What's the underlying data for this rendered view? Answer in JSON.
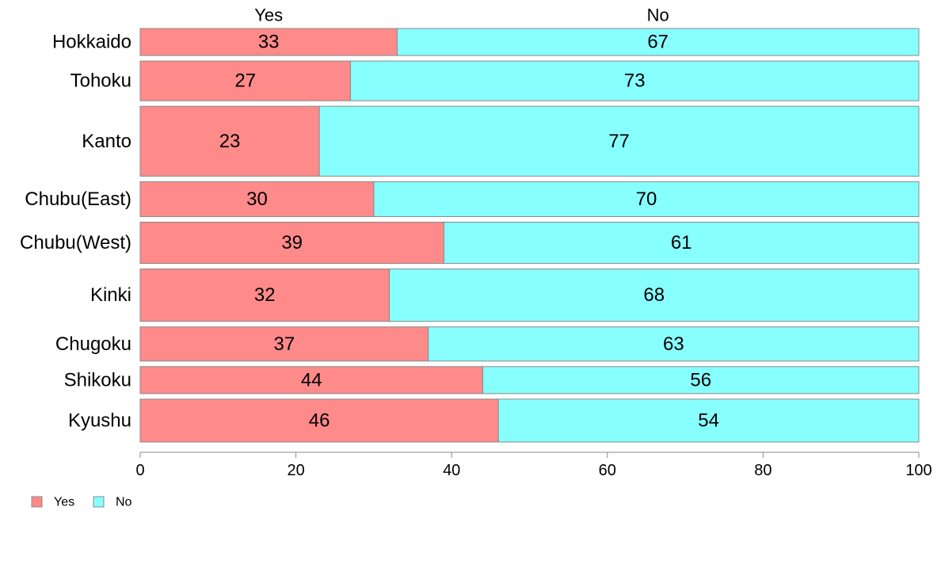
{
  "chart_data": {
    "type": "bar",
    "orientation": "horizontal",
    "stacked": true,
    "title": "",
    "xlabel": "",
    "ylabel": "",
    "xlim": [
      0,
      100
    ],
    "xticks": [
      0,
      20,
      40,
      60,
      80,
      100
    ],
    "grid": false,
    "legend_position": "bottom-left",
    "categories": [
      "Hokkaido",
      "Tohoku",
      "Kanto",
      "Chubu(East)",
      "Chubu(West)",
      "Kinki",
      "Chugoku",
      "Shikoku",
      "Kyushu"
    ],
    "category_weights": [
      34,
      50,
      88,
      44,
      52,
      66,
      43,
      34,
      54
    ],
    "series": [
      {
        "name": "Yes",
        "color": "#ff8a8a",
        "values": [
          33,
          27,
          23,
          30,
          39,
          32,
          37,
          44,
          46
        ],
        "header": "Yes"
      },
      {
        "name": "No",
        "color": "#88ffff",
        "values": [
          67,
          73,
          77,
          70,
          61,
          68,
          63,
          56,
          54
        ],
        "header": "No"
      }
    ],
    "legend": [
      {
        "label": "Yes",
        "color": "#ff8a8a"
      },
      {
        "label": "No",
        "color": "#88ffff"
      }
    ]
  }
}
